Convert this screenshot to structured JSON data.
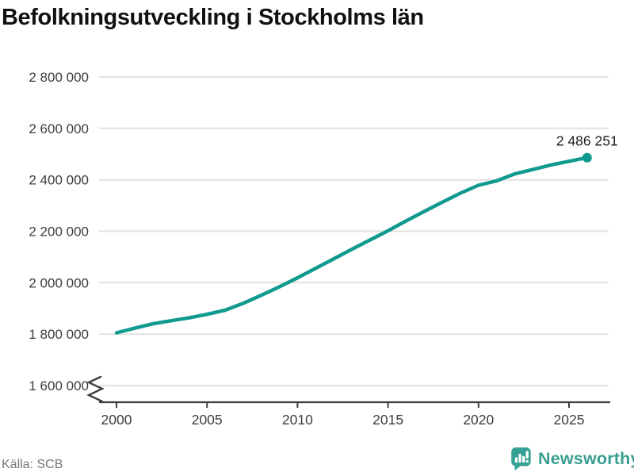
{
  "header": {
    "title": "Befolkningsutveckling i Stockholms län"
  },
  "footer": {
    "source": "Källa: SCB",
    "brand_name": "Newsworthy",
    "brand_icon": "speech-bubble-with-bar-chart-and-exclamation"
  },
  "colors": {
    "line": "#109a8f",
    "grid": "#e2e2e2",
    "axis": "#3d3d3d",
    "tick_label": "#3d3d3d",
    "title": "#111111",
    "end_label": "#1c1c1c",
    "source": "#767676",
    "brand": "#3b9e93",
    "brand_icon": "#35a195"
  },
  "chart_data": {
    "type": "line",
    "title": "Befolkningsutveckling i Stockholms län",
    "xlabel": "",
    "ylabel": "",
    "grid": "horizontal",
    "legend": "none",
    "axis_break_at_bottom": true,
    "ylim": [
      1600000,
      2800000
    ],
    "y_tick_labels": [
      "1 600 000",
      "1 800 000",
      "2 000 000",
      "2 200 000",
      "2 400 000",
      "2 600 000",
      "2 800 000"
    ],
    "y_tick_values": [
      1600000,
      1800000,
      2000000,
      2200000,
      2400000,
      2600000,
      2800000
    ],
    "x_tick_labels": [
      "2000",
      "2005",
      "2010",
      "2015",
      "2020",
      "2025"
    ],
    "x_tick_values": [
      2000,
      2005,
      2010,
      2015,
      2020,
      2025
    ],
    "end_label": "2 486 251",
    "end_value": 2486251,
    "series": [
      {
        "x": [
          2000,
          2001,
          2002,
          2003,
          2004,
          2005,
          2006,
          2007,
          2008,
          2009,
          2010,
          2011,
          2012,
          2013,
          2014,
          2015,
          2016,
          2017,
          2018,
          2019,
          2020,
          2021,
          2022,
          2023,
          2024,
          2025,
          2026
        ],
        "values": [
          1805000,
          1823000,
          1840000,
          1852000,
          1863000,
          1877000,
          1893000,
          1920000,
          1951000,
          1984000,
          2019000,
          2056000,
          2093000,
          2130000,
          2166000,
          2202000,
          2240000,
          2277000,
          2313000,
          2348000,
          2379000,
          2396000,
          2423000,
          2440000,
          2458000,
          2472000,
          2486251
        ]
      }
    ]
  }
}
